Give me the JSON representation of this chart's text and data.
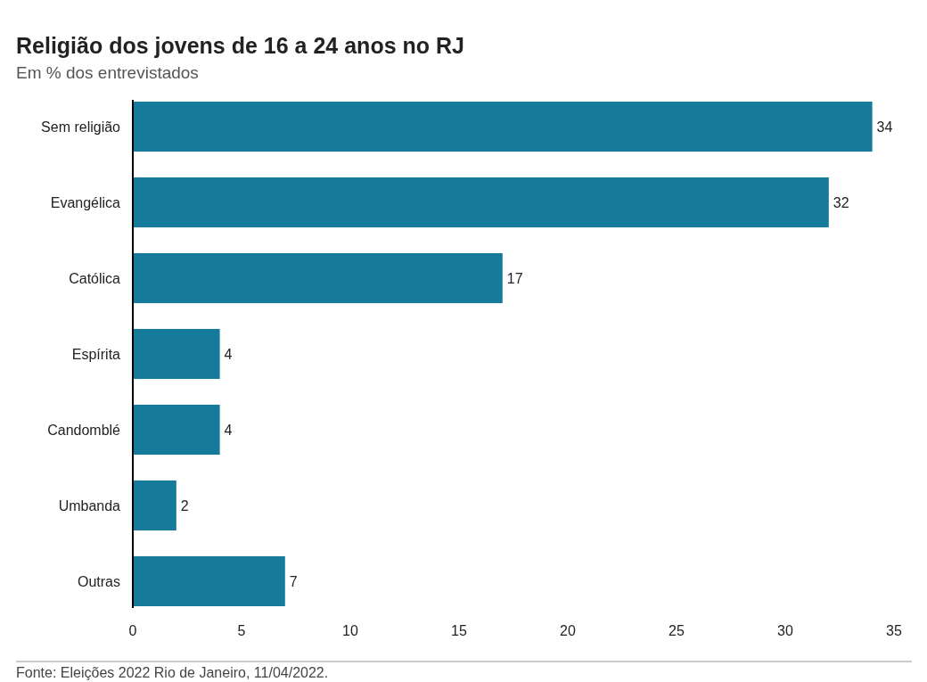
{
  "chart_data": {
    "type": "bar",
    "orientation": "horizontal",
    "title": "Religião dos jovens de 16 a 24 anos no RJ",
    "subtitle": "Em % dos entrevistados",
    "categories": [
      "Sem religião",
      "Evangélica",
      "Católica",
      "Espírita",
      "Candomblé",
      "Umbanda",
      "Outras"
    ],
    "values": [
      34,
      32,
      17,
      4,
      4,
      2,
      7
    ],
    "color": "#167b9a",
    "xlim": [
      0,
      35
    ],
    "xticks": [
      0,
      5,
      10,
      15,
      20,
      25,
      30,
      35
    ],
    "data_labels": true,
    "annotations": [
      "Fonte: Eleições 2022 Rio de Janeiro, 11/04/2022."
    ]
  }
}
